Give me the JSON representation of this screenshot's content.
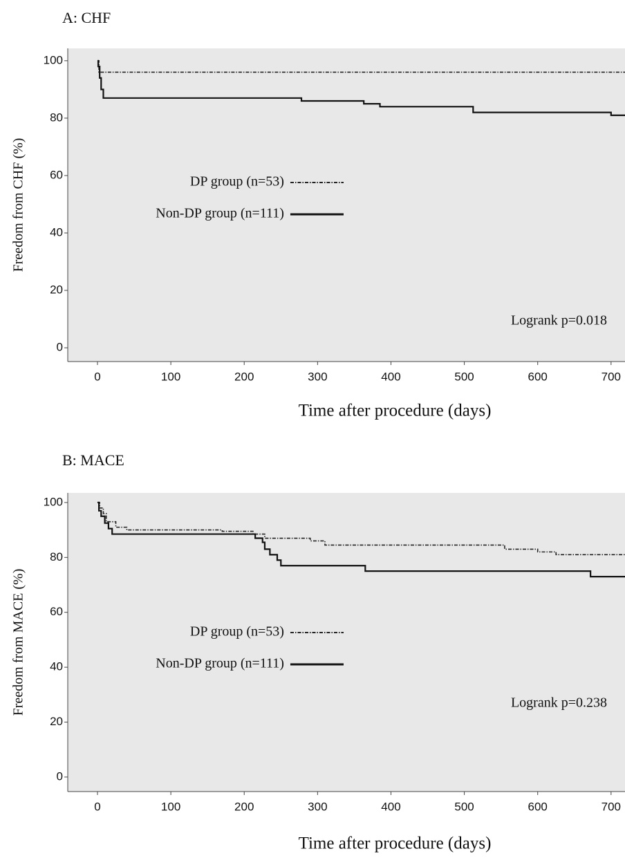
{
  "chart_data": [
    {
      "type": "step",
      "title": "A: CHF",
      "xlabel": "Time after procedure (days)",
      "ylabel": "Freedom from CHF (%)",
      "xlim": [
        -40.5,
        719
      ],
      "ylim": [
        -4.8,
        104.3
      ],
      "xticks": [
        0,
        100,
        200,
        300,
        400,
        500,
        600,
        700
      ],
      "yticks": [
        0,
        20,
        40,
        60,
        80,
        100
      ],
      "legend_position": "center-left",
      "background": "#e8e8e8",
      "annotation": "Logrank  p=0.018",
      "series": [
        {
          "name": "DP group (n=53)",
          "color": "#222222",
          "style": "dashdot",
          "x": [
            0,
            2,
            719
          ],
          "values": [
            100,
            96,
            96
          ]
        },
        {
          "name": "Non-DP group (n=111)",
          "color": "#111111",
          "style": "solid",
          "x": [
            0,
            1,
            3,
            5,
            8,
            278,
            363,
            385,
            512,
            700,
            719
          ],
          "values": [
            100,
            98,
            94,
            90,
            87,
            86,
            85,
            84,
            82,
            81,
            81
          ]
        }
      ]
    },
    {
      "type": "step",
      "title": "B: MACE",
      "xlabel": "Time after procedure (days)",
      "ylabel": "Freedom from MACE (%)",
      "xlim": [
        -40.5,
        719
      ],
      "ylim": [
        -5.3,
        103.5
      ],
      "xticks": [
        0,
        100,
        200,
        300,
        400,
        500,
        600,
        700
      ],
      "yticks": [
        0,
        20,
        40,
        60,
        80,
        100
      ],
      "legend_position": "center-left",
      "background": "#e8e8e8",
      "annotation": "Logrank  p=0.238",
      "series": [
        {
          "name": "DP group (n=53)",
          "color": "#222222",
          "style": "dashdot",
          "x": [
            0,
            3,
            8,
            12,
            25,
            40,
            170,
            212,
            228,
            290,
            310,
            555,
            600,
            625,
            719
          ],
          "values": [
            100,
            98,
            96,
            93,
            91,
            90,
            89.5,
            88.5,
            87,
            86,
            84.5,
            83,
            82,
            81,
            81
          ]
        },
        {
          "name": "Non-DP group (n=111)",
          "color": "#111111",
          "style": "solid",
          "x": [
            0,
            2,
            5,
            10,
            15,
            20,
            215,
            225,
            228,
            235,
            245,
            250,
            365,
            672,
            719
          ],
          "values": [
            100,
            97,
            95,
            92.5,
            90.5,
            88.5,
            87,
            85.5,
            83,
            81,
            79,
            77,
            75,
            73,
            73
          ]
        }
      ]
    }
  ]
}
